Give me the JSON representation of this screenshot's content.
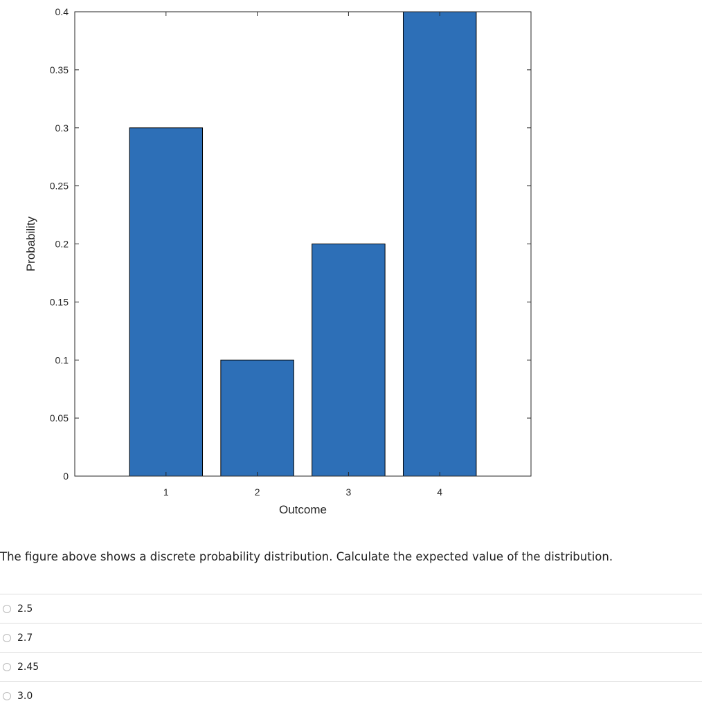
{
  "chart_data": {
    "type": "bar",
    "categories": [
      "1",
      "2",
      "3",
      "4"
    ],
    "values": [
      0.3,
      0.1,
      0.2,
      0.4
    ],
    "title": "",
    "xlabel": "Outcome",
    "ylabel": "Probability",
    "ylim": [
      0,
      0.4
    ],
    "xlim": [
      0.0,
      5.0
    ],
    "yticks": [
      "0",
      "0.05",
      "0.1",
      "0.15",
      "0.2",
      "0.25",
      "0.3",
      "0.35",
      "0.4"
    ],
    "grid": false,
    "bar_color": "#2d6fb7",
    "bar_edge_color": "#000000"
  },
  "question": {
    "text": "The figure above shows a discrete probability distribution.  Calculate the expected value of the distribution."
  },
  "answers": [
    {
      "label": "2.5"
    },
    {
      "label": "2.7"
    },
    {
      "label": "2.45"
    },
    {
      "label": "3.0"
    }
  ]
}
